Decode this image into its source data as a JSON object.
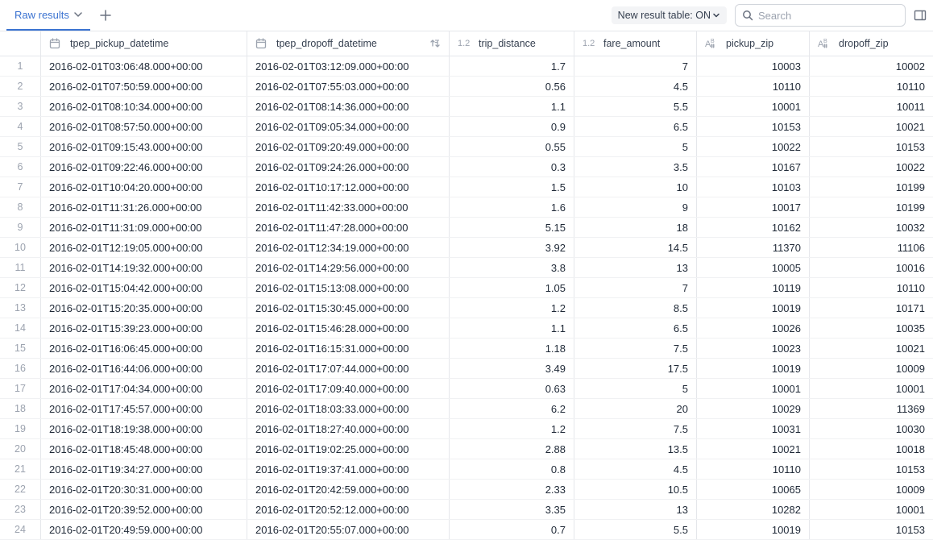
{
  "topbar": {
    "tab_label": "Raw results",
    "result_select_label": "New result table: ON",
    "search_placeholder": "Search"
  },
  "columns": [
    {
      "key": "pickup",
      "label": "tpep_pickup_datetime",
      "type": "datetime",
      "has_sort": false
    },
    {
      "key": "dropoff",
      "label": "tpep_dropoff_datetime",
      "type": "datetime",
      "has_sort": true
    },
    {
      "key": "dist",
      "label": "trip_distance",
      "type": "decimal",
      "has_sort": false
    },
    {
      "key": "fare",
      "label": "fare_amount",
      "type": "decimal",
      "has_sort": false
    },
    {
      "key": "pzip",
      "label": "pickup_zip",
      "type": "hash",
      "has_sort": false
    },
    {
      "key": "dzip",
      "label": "dropoff_zip",
      "type": "hash",
      "has_sort": false
    }
  ],
  "rows": [
    {
      "n": 1,
      "pickup": "2016-02-01T03:06:48.000+00:00",
      "dropoff": "2016-02-01T03:12:09.000+00:00",
      "dist": "1.7",
      "fare": "7",
      "pzip": "10003",
      "dzip": "10002"
    },
    {
      "n": 2,
      "pickup": "2016-02-01T07:50:59.000+00:00",
      "dropoff": "2016-02-01T07:55:03.000+00:00",
      "dist": "0.56",
      "fare": "4.5",
      "pzip": "10110",
      "dzip": "10110"
    },
    {
      "n": 3,
      "pickup": "2016-02-01T08:10:34.000+00:00",
      "dropoff": "2016-02-01T08:14:36.000+00:00",
      "dist": "1.1",
      "fare": "5.5",
      "pzip": "10001",
      "dzip": "10011"
    },
    {
      "n": 4,
      "pickup": "2016-02-01T08:57:50.000+00:00",
      "dropoff": "2016-02-01T09:05:34.000+00:00",
      "dist": "0.9",
      "fare": "6.5",
      "pzip": "10153",
      "dzip": "10021"
    },
    {
      "n": 5,
      "pickup": "2016-02-01T09:15:43.000+00:00",
      "dropoff": "2016-02-01T09:20:49.000+00:00",
      "dist": "0.55",
      "fare": "5",
      "pzip": "10022",
      "dzip": "10153"
    },
    {
      "n": 6,
      "pickup": "2016-02-01T09:22:46.000+00:00",
      "dropoff": "2016-02-01T09:24:26.000+00:00",
      "dist": "0.3",
      "fare": "3.5",
      "pzip": "10167",
      "dzip": "10022"
    },
    {
      "n": 7,
      "pickup": "2016-02-01T10:04:20.000+00:00",
      "dropoff": "2016-02-01T10:17:12.000+00:00",
      "dist": "1.5",
      "fare": "10",
      "pzip": "10103",
      "dzip": "10199"
    },
    {
      "n": 8,
      "pickup": "2016-02-01T11:31:26.000+00:00",
      "dropoff": "2016-02-01T11:42:33.000+00:00",
      "dist": "1.6",
      "fare": "9",
      "pzip": "10017",
      "dzip": "10199"
    },
    {
      "n": 9,
      "pickup": "2016-02-01T11:31:09.000+00:00",
      "dropoff": "2016-02-01T11:47:28.000+00:00",
      "dist": "5.15",
      "fare": "18",
      "pzip": "10162",
      "dzip": "10032"
    },
    {
      "n": 10,
      "pickup": "2016-02-01T12:19:05.000+00:00",
      "dropoff": "2016-02-01T12:34:19.000+00:00",
      "dist": "3.92",
      "fare": "14.5",
      "pzip": "11370",
      "dzip": "11106"
    },
    {
      "n": 11,
      "pickup": "2016-02-01T14:19:32.000+00:00",
      "dropoff": "2016-02-01T14:29:56.000+00:00",
      "dist": "3.8",
      "fare": "13",
      "pzip": "10005",
      "dzip": "10016"
    },
    {
      "n": 12,
      "pickup": "2016-02-01T15:04:42.000+00:00",
      "dropoff": "2016-02-01T15:13:08.000+00:00",
      "dist": "1.05",
      "fare": "7",
      "pzip": "10119",
      "dzip": "10110"
    },
    {
      "n": 13,
      "pickup": "2016-02-01T15:20:35.000+00:00",
      "dropoff": "2016-02-01T15:30:45.000+00:00",
      "dist": "1.2",
      "fare": "8.5",
      "pzip": "10019",
      "dzip": "10171"
    },
    {
      "n": 14,
      "pickup": "2016-02-01T15:39:23.000+00:00",
      "dropoff": "2016-02-01T15:46:28.000+00:00",
      "dist": "1.1",
      "fare": "6.5",
      "pzip": "10026",
      "dzip": "10035"
    },
    {
      "n": 15,
      "pickup": "2016-02-01T16:06:45.000+00:00",
      "dropoff": "2016-02-01T16:15:31.000+00:00",
      "dist": "1.18",
      "fare": "7.5",
      "pzip": "10023",
      "dzip": "10021"
    },
    {
      "n": 16,
      "pickup": "2016-02-01T16:44:06.000+00:00",
      "dropoff": "2016-02-01T17:07:44.000+00:00",
      "dist": "3.49",
      "fare": "17.5",
      "pzip": "10019",
      "dzip": "10009"
    },
    {
      "n": 17,
      "pickup": "2016-02-01T17:04:34.000+00:00",
      "dropoff": "2016-02-01T17:09:40.000+00:00",
      "dist": "0.63",
      "fare": "5",
      "pzip": "10001",
      "dzip": "10001"
    },
    {
      "n": 18,
      "pickup": "2016-02-01T17:45:57.000+00:00",
      "dropoff": "2016-02-01T18:03:33.000+00:00",
      "dist": "6.2",
      "fare": "20",
      "pzip": "10029",
      "dzip": "11369"
    },
    {
      "n": 19,
      "pickup": "2016-02-01T18:19:38.000+00:00",
      "dropoff": "2016-02-01T18:27:40.000+00:00",
      "dist": "1.2",
      "fare": "7.5",
      "pzip": "10031",
      "dzip": "10030"
    },
    {
      "n": 20,
      "pickup": "2016-02-01T18:45:48.000+00:00",
      "dropoff": "2016-02-01T19:02:25.000+00:00",
      "dist": "2.88",
      "fare": "13.5",
      "pzip": "10021",
      "dzip": "10018"
    },
    {
      "n": 21,
      "pickup": "2016-02-01T19:34:27.000+00:00",
      "dropoff": "2016-02-01T19:37:41.000+00:00",
      "dist": "0.8",
      "fare": "4.5",
      "pzip": "10110",
      "dzip": "10153"
    },
    {
      "n": 22,
      "pickup": "2016-02-01T20:30:31.000+00:00",
      "dropoff": "2016-02-01T20:42:59.000+00:00",
      "dist": "2.33",
      "fare": "10.5",
      "pzip": "10065",
      "dzip": "10009"
    },
    {
      "n": 23,
      "pickup": "2016-02-01T20:39:52.000+00:00",
      "dropoff": "2016-02-01T20:52:12.000+00:00",
      "dist": "3.35",
      "fare": "13",
      "pzip": "10282",
      "dzip": "10001"
    },
    {
      "n": 24,
      "pickup": "2016-02-01T20:49:59.000+00:00",
      "dropoff": "2016-02-01T20:55:07.000+00:00",
      "dist": "0.7",
      "fare": "5.5",
      "pzip": "10019",
      "dzip": "10153"
    }
  ]
}
